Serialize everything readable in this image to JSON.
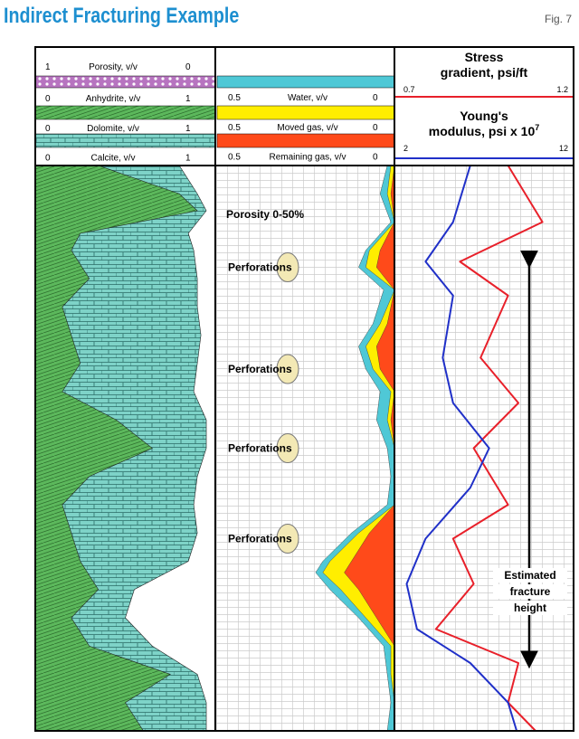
{
  "title": "Indirect Fracturing Example",
  "fig": "Fig. 7",
  "chart_data": {
    "type": "line",
    "title": "Indirect Fracturing Example",
    "tracks": [
      {
        "name": "lithology",
        "headers": [
          {
            "label": "Porosity, v/v",
            "left": "1",
            "right": "0",
            "color": "#d9a6e0"
          },
          {
            "label": "Anhydrite, v/v",
            "left": "0",
            "right": "1",
            "color": "#5cb85c"
          },
          {
            "label": "Dolomite, v/v",
            "left": "0",
            "right": "1",
            "color": "#76d0c6"
          },
          {
            "label": "Calcite, v/v",
            "left": "0",
            "right": "1",
            "color": "#ffffff"
          }
        ],
        "depth": [
          0,
          5,
          8,
          12,
          15,
          20,
          25,
          30,
          35,
          40,
          45,
          50,
          55,
          60,
          65,
          70,
          75,
          80,
          85,
          90,
          95,
          100
        ],
        "green_fraction": [
          0.35,
          0.8,
          0.9,
          0.25,
          0.2,
          0.3,
          0.15,
          0.2,
          0.25,
          0.15,
          0.45,
          0.65,
          0.3,
          0.15,
          0.2,
          0.25,
          0.35,
          0.2,
          0.3,
          0.75,
          0.5,
          0.6
        ],
        "porosity_fraction": [
          0.2,
          0.1,
          0.05,
          0.15,
          0.12,
          0.1,
          0.1,
          0.08,
          0.1,
          0.12,
          0.05,
          0.05,
          0.1,
          0.12,
          0.1,
          0.15,
          0.45,
          0.5,
          0.35,
          0.1,
          0.05,
          0.05
        ]
      },
      {
        "name": "fluids",
        "headers": [
          {
            "label": "Water, v/v",
            "left": "0.5",
            "right": "0",
            "color": "#4fc8d6"
          },
          {
            "label": "Moved gas, v/v",
            "left": "0.5",
            "right": "0",
            "color": "#ffee00"
          },
          {
            "label": "Remaining gas, v/v",
            "left": "0.5",
            "right": "0",
            "color": "#ff4a1a"
          }
        ],
        "depth": [
          0,
          5,
          10,
          15,
          18,
          22,
          28,
          32,
          36,
          40,
          45,
          50,
          55,
          60,
          65,
          70,
          72,
          75,
          80,
          85,
          90,
          95,
          100
        ],
        "total": [
          0.02,
          0.04,
          0.01,
          0.08,
          0.1,
          0.03,
          0.06,
          0.1,
          0.08,
          0.04,
          0.05,
          0.02,
          0.01,
          0.02,
          0.12,
          0.2,
          0.22,
          0.18,
          0.1,
          0.03,
          0.02,
          0.01,
          0.02
        ],
        "gas": [
          0.01,
          0.02,
          0.0,
          0.07,
          0.08,
          0.0,
          0.04,
          0.08,
          0.06,
          0.01,
          0.02,
          0.0,
          0.0,
          0.0,
          0.1,
          0.18,
          0.2,
          0.15,
          0.08,
          0.01,
          0.01,
          0.0,
          0.0
        ],
        "moved": [
          0.0,
          0.01,
          0.0,
          0.04,
          0.05,
          0.0,
          0.02,
          0.05,
          0.04,
          0.0,
          0.01,
          0.0,
          0.0,
          0.0,
          0.07,
          0.12,
          0.14,
          0.1,
          0.05,
          0.0,
          0.0,
          0.0,
          0.0
        ],
        "annotation": "Porosity 0-50%",
        "perforations": [
          {
            "label": "Perforations",
            "depth": 18
          },
          {
            "label": "Perforations",
            "depth": 36
          },
          {
            "label": "Perforations",
            "depth": 50
          },
          {
            "label": "Perforations",
            "depth": 66
          }
        ]
      },
      {
        "name": "mechanical",
        "series": [
          {
            "name": "Stress gradient, psi/ft",
            "unit_range": [
              0.7,
              1.2
            ],
            "left": "0.7",
            "right": "1.2",
            "color": "#e8202a",
            "depth": [
              0,
              10,
              17,
              23,
              34,
              42,
              50,
              60,
              66,
              74,
              82,
              88,
              95,
              100
            ],
            "values": [
              1.02,
              1.12,
              0.88,
              1.02,
              0.94,
              1.05,
              0.92,
              1.02,
              0.86,
              0.92,
              0.81,
              1.05,
              1.02,
              1.1
            ]
          },
          {
            "name": "Young's modulus, psi x 10",
            "superscript": "7",
            "unit_range": [
              2,
              12
            ],
            "left": "2",
            "right": "12",
            "color": "#2030c8",
            "depth": [
              0,
              10,
              17,
              23,
              34,
              42,
              50,
              57,
              66,
              74,
              82,
              88,
              95,
              100
            ],
            "values": [
              6.2,
              5.2,
              3.6,
              5.2,
              4.6,
              5.2,
              7.3,
              6.2,
              3.6,
              2.5,
              3.1,
              6.2,
              8.4,
              8.9
            ]
          }
        ],
        "annotation": [
          "Estimated",
          "fracture",
          "height"
        ],
        "fracture_depth_range": [
          15,
          89
        ]
      }
    ]
  }
}
